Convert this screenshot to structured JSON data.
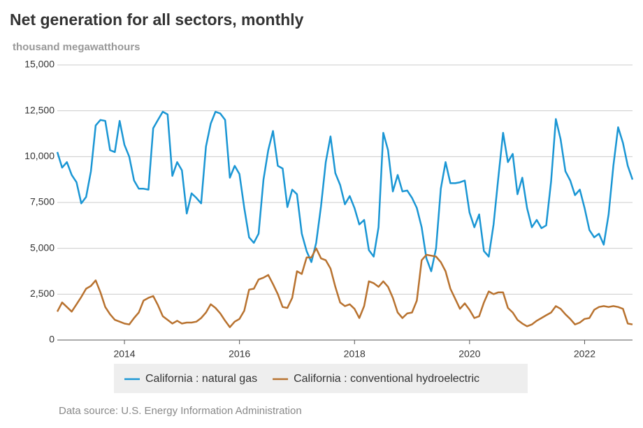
{
  "chart_data": {
    "type": "line",
    "title": "Net generation for all sectors, monthly",
    "subtitle": "thousand megawatthours",
    "source": "Data source: U.S. Energy Information Administration",
    "x": [
      2012.833,
      2012.917,
      2013,
      2013.083,
      2013.167,
      2013.25,
      2013.333,
      2013.417,
      2013.5,
      2013.583,
      2013.667,
      2013.75,
      2013.833,
      2013.917,
      2014,
      2014.083,
      2014.167,
      2014.25,
      2014.333,
      2014.417,
      2014.5,
      2014.583,
      2014.667,
      2014.75,
      2014.833,
      2014.917,
      2015,
      2015.083,
      2015.167,
      2015.25,
      2015.333,
      2015.417,
      2015.5,
      2015.583,
      2015.667,
      2015.75,
      2015.833,
      2015.917,
      2016,
      2016.083,
      2016.167,
      2016.25,
      2016.333,
      2016.417,
      2016.5,
      2016.583,
      2016.667,
      2016.75,
      2016.833,
      2016.917,
      2017,
      2017.083,
      2017.167,
      2017.25,
      2017.333,
      2017.417,
      2017.5,
      2017.583,
      2017.667,
      2017.75,
      2017.833,
      2017.917,
      2018,
      2018.083,
      2018.167,
      2018.25,
      2018.333,
      2018.417,
      2018.5,
      2018.583,
      2018.667,
      2018.75,
      2018.833,
      2018.917,
      2019,
      2019.083,
      2019.167,
      2019.25,
      2019.333,
      2019.417,
      2019.5,
      2019.583,
      2019.667,
      2019.75,
      2019.833,
      2019.917,
      2020,
      2020.083,
      2020.167,
      2020.25,
      2020.333,
      2020.417,
      2020.5,
      2020.583,
      2020.667,
      2020.75,
      2020.833,
      2020.917,
      2021,
      2021.083,
      2021.167,
      2021.25,
      2021.333,
      2021.417,
      2021.5,
      2021.583,
      2021.667,
      2021.75,
      2021.833,
      2021.917,
      2022,
      2022.083,
      2022.167,
      2022.25,
      2022.333,
      2022.417,
      2022.5,
      2022.583,
      2022.667,
      2022.75,
      2022.833
    ],
    "series": [
      {
        "name": "California : natural gas",
        "color": "#1a96d4",
        "values": [
          10250,
          9400,
          9700,
          9000,
          8600,
          7450,
          7800,
          9200,
          11700,
          12000,
          11950,
          10350,
          10250,
          11950,
          10650,
          10000,
          8700,
          8250,
          8250,
          8200,
          11550,
          12000,
          12450,
          12300,
          8950,
          9700,
          9250,
          6900,
          8000,
          7750,
          7450,
          10550,
          11800,
          12450,
          12350,
          12000,
          8850,
          9500,
          9050,
          7200,
          5600,
          5300,
          5800,
          8750,
          10350,
          11400,
          9500,
          9350,
          7250,
          8200,
          7950,
          5800,
          4850,
          4250,
          5300,
          7300,
          9700,
          11100,
          9100,
          8450,
          7400,
          7850,
          7200,
          6300,
          6550,
          4900,
          4550,
          6150,
          11300,
          10350,
          8100,
          9000,
          8100,
          8150,
          7750,
          7200,
          6150,
          4450,
          3750,
          5000,
          8250,
          9700,
          8550,
          8550,
          8600,
          8700,
          6950,
          6150,
          6850,
          4850,
          4550,
          6300,
          8850,
          11300,
          9700,
          10150,
          7950,
          8850,
          7200,
          6150,
          6550,
          6100,
          6250,
          8650,
          12050,
          10950,
          9200,
          8700,
          7900,
          8200,
          7200,
          6000,
          5600,
          5800,
          5200,
          6850,
          9500,
          11600,
          10750,
          9500,
          8750
        ]
      },
      {
        "name": "California : conventional hydroelectric",
        "color": "#b8722f",
        "values": [
          1550,
          2050,
          1800,
          1550,
          1950,
          2350,
          2800,
          2950,
          3250,
          2600,
          1800,
          1400,
          1100,
          1000,
          900,
          850,
          1200,
          1500,
          2150,
          2300,
          2400,
          1900,
          1300,
          1100,
          900,
          1050,
          900,
          950,
          950,
          1000,
          1200,
          1500,
          1950,
          1750,
          1450,
          1050,
          700,
          1000,
          1150,
          1600,
          2750,
          2800,
          3300,
          3400,
          3550,
          3050,
          2500,
          1800,
          1750,
          2300,
          3750,
          3600,
          4500,
          4500,
          5000,
          4450,
          4350,
          3900,
          2900,
          2050,
          1850,
          1950,
          1700,
          1200,
          1850,
          3200,
          3100,
          2900,
          3200,
          2900,
          2300,
          1500,
          1200,
          1450,
          1500,
          2150,
          4350,
          4650,
          4600,
          4550,
          4250,
          3750,
          2800,
          2250,
          1700,
          2000,
          1650,
          1200,
          1300,
          2050,
          2650,
          2500,
          2600,
          2600,
          1750,
          1500,
          1100,
          900,
          750,
          850,
          1050,
          1200,
          1350,
          1500,
          1850,
          1700,
          1400,
          1150,
          850,
          950,
          1150,
          1200,
          1650,
          1800,
          1850,
          1800,
          1850,
          1800,
          1700,
          900,
          850
        ]
      }
    ],
    "xlim": [
      2012.833,
      2022.833
    ],
    "xticks": [
      2014,
      2016,
      2018,
      2020,
      2022
    ],
    "ylim": [
      0,
      15000
    ],
    "yticks": [
      0,
      {
        "value": 2500,
        "label": "2,500"
      },
      {
        "value": 5000,
        "label": "5,000"
      },
      {
        "value": 7500,
        "label": "7,500"
      },
      {
        "value": 10000,
        "label": "10,000"
      },
      {
        "value": 12500,
        "label": "12,500"
      },
      {
        "value": 15000,
        "label": "15,000"
      }
    ],
    "grid": true,
    "legend": "bottom"
  }
}
